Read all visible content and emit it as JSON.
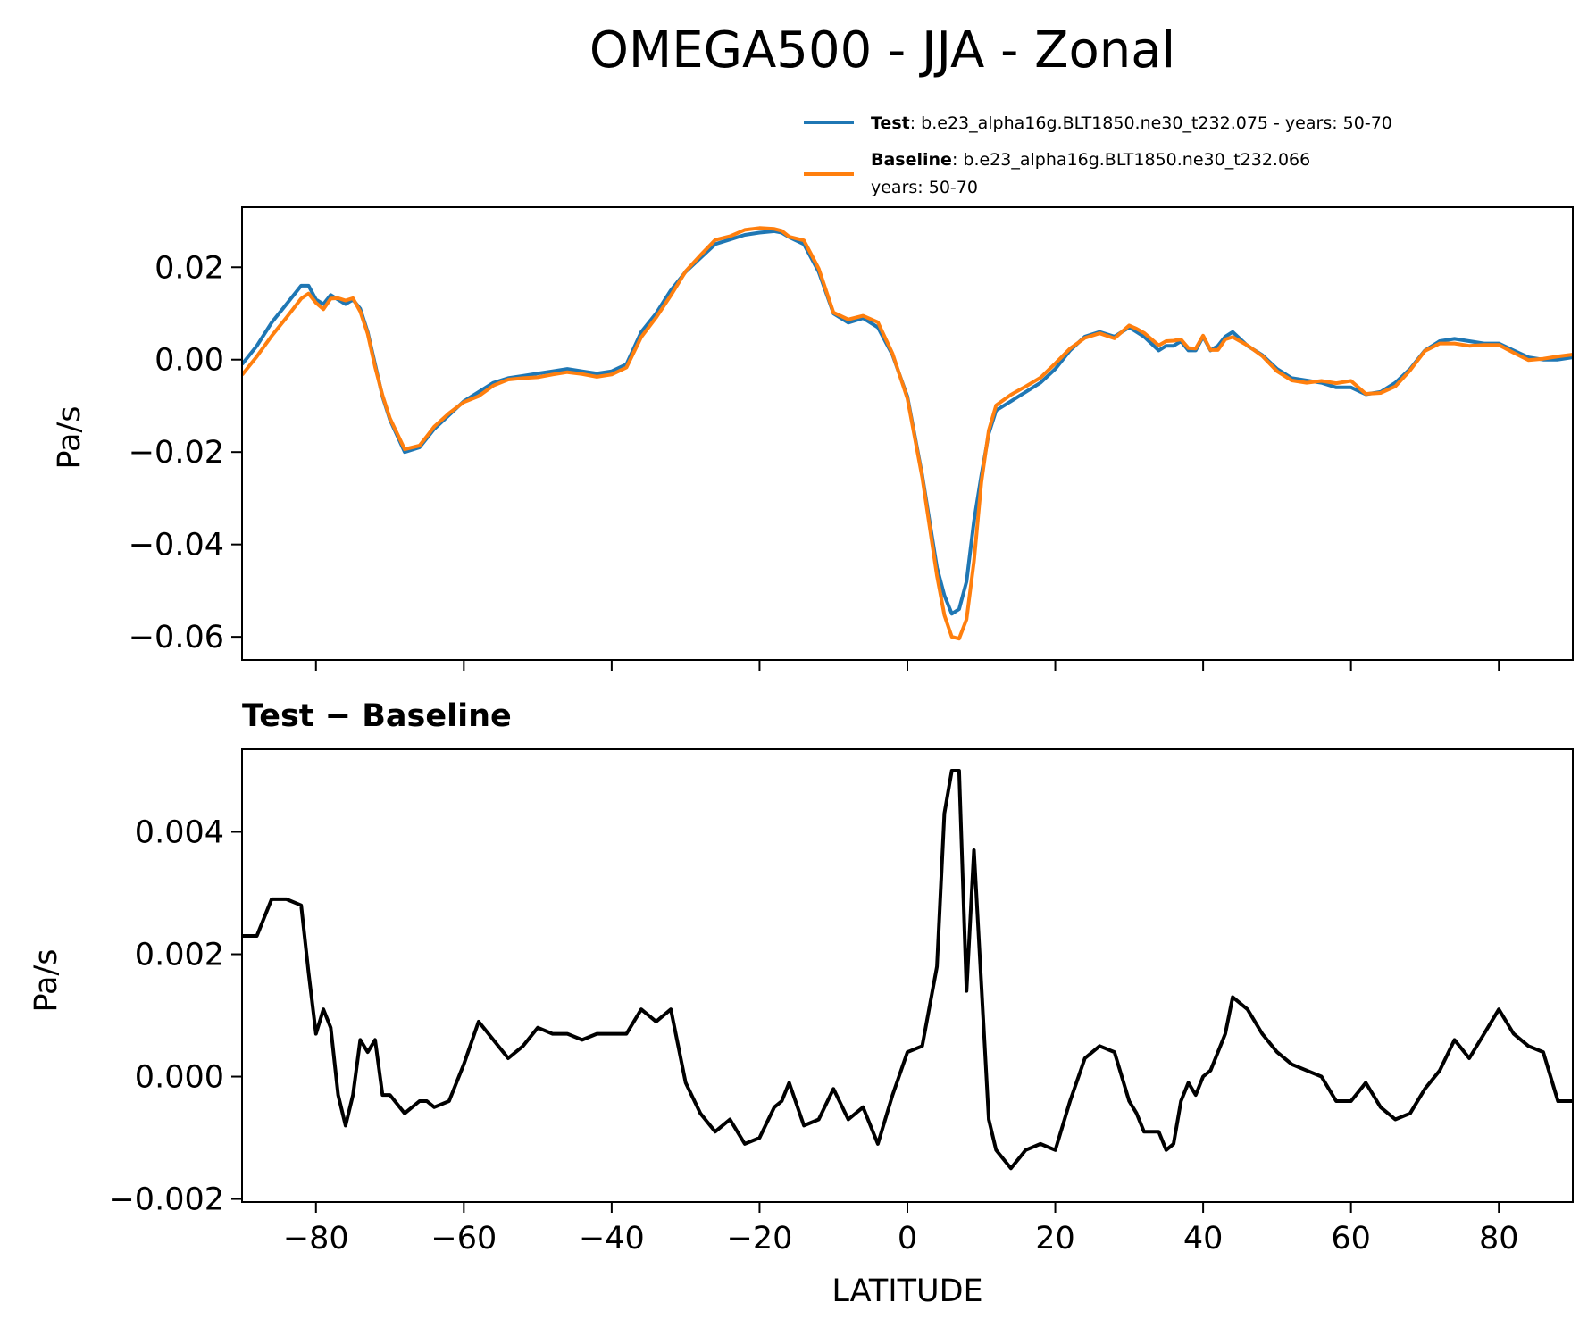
{
  "title": "OMEGA500 - JJA - Zonal",
  "legend": {
    "test_name": "Test",
    "test_desc": ": b.e23_alpha16g.BLT1850.ne30_t232.075 - years: 50-70",
    "baseline_name": "Baseline",
    "baseline_desc": ": b.e23_alpha16g.BLT1850.ne30_t232.066",
    "baseline_desc2": "years: 50-70"
  },
  "diff_title": "Test − Baseline",
  "colors": {
    "test": "#1f77b4",
    "baseline": "#ff7f0e",
    "diff": "#000000"
  },
  "chart_data": [
    {
      "type": "line",
      "title": "OMEGA500 - JJA - Zonal",
      "xlabel": "",
      "ylabel": "Pa/s",
      "xlim": [
        -90,
        90
      ],
      "ylim": [
        -0.065,
        0.033
      ],
      "xticks": [
        -80,
        -60,
        -40,
        -20,
        0,
        20,
        40,
        60,
        80
      ],
      "yticks": [
        0.02,
        0.0,
        -0.02,
        -0.04,
        -0.06
      ],
      "ytick_labels": [
        "0.02",
        "0.00",
        "−0.02",
        "−0.04",
        "−0.06"
      ],
      "series": [
        {
          "name": "Test",
          "x": [
            -90,
            -88,
            -86,
            -84,
            -82,
            -81,
            -80,
            -79,
            -78,
            -77,
            -76,
            -75,
            -74,
            -73,
            -72,
            -71,
            -70,
            -68,
            -66,
            -65,
            -64,
            -62,
            -60,
            -58,
            -56,
            -54,
            -52,
            -50,
            -48,
            -46,
            -44,
            -42,
            -40,
            -38,
            -36,
            -34,
            -32,
            -30,
            -28,
            -26,
            -24,
            -22,
            -20,
            -18,
            -17,
            -16,
            -14,
            -12,
            -10,
            -8,
            -6,
            -4,
            -2,
            0,
            2,
            4,
            5,
            6,
            7,
            8,
            9,
            10,
            11,
            12,
            14,
            16,
            18,
            20,
            22,
            24,
            26,
            28,
            30,
            31,
            32,
            34,
            35,
            36,
            37,
            38,
            39,
            40,
            41,
            42,
            43,
            44,
            46,
            48,
            50,
            52,
            54,
            56,
            58,
            60,
            62,
            64,
            66,
            68,
            70,
            72,
            74,
            76,
            78,
            80,
            82,
            84,
            86,
            88,
            90
          ],
          "values": [
            -0.001,
            0.003,
            0.008,
            0.012,
            0.016,
            0.016,
            0.013,
            0.012,
            0.014,
            0.013,
            0.012,
            0.013,
            0.011,
            0.006,
            -0.001,
            -0.008,
            -0.013,
            -0.02,
            -0.019,
            -0.017,
            -0.015,
            -0.012,
            -0.009,
            -0.007,
            -0.005,
            -0.004,
            -0.0035,
            -0.003,
            -0.0025,
            -0.002,
            -0.0025,
            -0.003,
            -0.0025,
            -0.001,
            0.006,
            0.01,
            0.015,
            0.019,
            0.022,
            0.025,
            0.026,
            0.027,
            0.0275,
            0.0278,
            0.0275,
            0.0265,
            0.025,
            0.019,
            0.01,
            0.008,
            0.009,
            0.007,
            0.001,
            -0.008,
            -0.025,
            -0.045,
            -0.051,
            -0.055,
            -0.054,
            -0.048,
            -0.035,
            -0.025,
            -0.016,
            -0.011,
            -0.009,
            -0.007,
            -0.005,
            -0.002,
            0.002,
            0.005,
            0.006,
            0.005,
            0.007,
            0.006,
            0.005,
            0.002,
            0.003,
            0.003,
            0.004,
            0.002,
            0.002,
            0.005,
            0.002,
            0.003,
            0.005,
            0.006,
            0.003,
            0.001,
            -0.002,
            -0.004,
            -0.0045,
            -0.005,
            -0.006,
            -0.006,
            -0.0075,
            -0.007,
            -0.005,
            -0.002,
            0.002,
            0.004,
            0.0045,
            0.004,
            0.0035,
            0.0035,
            0.002,
            0.0005,
            0.0,
            0.0,
            0.0005
          ]
        },
        {
          "name": "Baseline",
          "x": [
            -90,
            -88,
            -86,
            -84,
            -82,
            -81,
            -80,
            -79,
            -78,
            -77,
            -76,
            -75,
            -74,
            -73,
            -72,
            -71,
            -70,
            -68,
            -66,
            -65,
            -64,
            -62,
            -60,
            -58,
            -56,
            -54,
            -52,
            -50,
            -48,
            -46,
            -44,
            -42,
            -40,
            -38,
            -36,
            -34,
            -32,
            -30,
            -28,
            -26,
            -24,
            -22,
            -20,
            -18,
            -17,
            -16,
            -14,
            -12,
            -10,
            -8,
            -6,
            -4,
            -2,
            0,
            2,
            4,
            5,
            6,
            7,
            8,
            9,
            10,
            11,
            12,
            14,
            16,
            18,
            20,
            22,
            24,
            26,
            28,
            30,
            31,
            32,
            34,
            35,
            36,
            37,
            38,
            39,
            40,
            41,
            42,
            43,
            44,
            46,
            48,
            50,
            52,
            54,
            56,
            58,
            60,
            62,
            64,
            66,
            68,
            70,
            72,
            74,
            76,
            78,
            80,
            82,
            84,
            86,
            88,
            90
          ],
          "values": [
            -0.0033,
            0.0007,
            0.0051,
            0.0091,
            0.0132,
            0.0143,
            0.0123,
            0.0109,
            0.0132,
            0.0133,
            0.0128,
            0.0133,
            0.0104,
            0.0056,
            -0.0016,
            -0.0077,
            -0.0127,
            -0.0194,
            -0.0186,
            -0.0166,
            -0.0145,
            -0.0116,
            -0.0092,
            -0.0079,
            -0.0056,
            -0.0043,
            -0.004,
            -0.0038,
            -0.0032,
            -0.0027,
            -0.0031,
            -0.0037,
            -0.0032,
            -0.0017,
            0.0049,
            0.0091,
            0.0139,
            0.0191,
            0.0226,
            0.0259,
            0.0267,
            0.0281,
            0.0285,
            0.0283,
            0.0279,
            0.0266,
            0.0258,
            0.0197,
            0.0102,
            0.0087,
            0.0095,
            0.0081,
            0.0013,
            -0.0084,
            -0.0255,
            -0.0468,
            -0.0553,
            -0.06,
            -0.0604,
            -0.0562,
            -0.0437,
            -0.0265,
            -0.0153,
            -0.0099,
            -0.0076,
            -0.0058,
            -0.0039,
            -0.0008,
            0.0024,
            0.0047,
            0.0057,
            0.0046,
            0.0074,
            0.0067,
            0.0058,
            0.0031,
            0.004,
            0.0041,
            0.0044,
            0.0025,
            0.0024,
            0.0052,
            0.0021,
            0.0021,
            0.0044,
            0.0049,
            0.0031,
            0.0008,
            -0.0025,
            -0.0045,
            -0.005,
            -0.0046,
            -0.0051,
            -0.0046,
            -0.0074,
            -0.0072,
            -0.0058,
            -0.0023,
            0.0019,
            0.0035,
            0.0035,
            0.003,
            0.0032,
            0.0032,
            0.0015,
            -0.0001,
            0.0002,
            0.0007,
            0.0011
          ]
        }
      ]
    },
    {
      "type": "line",
      "title": "Test − Baseline",
      "xlabel": "LATITUDE",
      "ylabel": "Pa/s",
      "xlim": [
        -90,
        90
      ],
      "ylim": [
        -0.00205,
        0.00535
      ],
      "xticks": [
        -80,
        -60,
        -40,
        -20,
        0,
        20,
        40,
        60,
        80
      ],
      "xtick_labels": [
        "−80",
        "−60",
        "−40",
        "−20",
        "0",
        "20",
        "40",
        "60",
        "80"
      ],
      "yticks": [
        0.004,
        0.002,
        0.0,
        -0.002
      ],
      "ytick_labels": [
        "0.004",
        "0.002",
        "0.000",
        "−0.002"
      ],
      "series": [
        {
          "name": "Test − Baseline",
          "x": [
            -90,
            -88,
            -86,
            -84,
            -82,
            -81,
            -80,
            -79,
            -78,
            -77,
            -76,
            -75,
            -74,
            -73,
            -72,
            -71,
            -70,
            -68,
            -66,
            -65,
            -64,
            -62,
            -60,
            -58,
            -56,
            -54,
            -52,
            -50,
            -48,
            -46,
            -44,
            -42,
            -40,
            -38,
            -36,
            -34,
            -32,
            -30,
            -28,
            -26,
            -24,
            -22,
            -20,
            -18,
            -17,
            -16,
            -14,
            -12,
            -10,
            -8,
            -6,
            -4,
            -2,
            0,
            2,
            4,
            5,
            6,
            7,
            8,
            9,
            10,
            11,
            12,
            14,
            16,
            18,
            20,
            22,
            24,
            26,
            28,
            30,
            31,
            32,
            34,
            35,
            36,
            37,
            38,
            39,
            40,
            41,
            42,
            43,
            44,
            46,
            48,
            50,
            52,
            54,
            56,
            58,
            60,
            62,
            64,
            66,
            68,
            70,
            72,
            74,
            76,
            78,
            80,
            82,
            84,
            86,
            88,
            90
          ],
          "values": [
            0.0023,
            0.0023,
            0.0029,
            0.0029,
            0.0028,
            0.0017,
            0.0007,
            0.0011,
            0.0008,
            -0.0003,
            -0.0008,
            -0.0003,
            0.0006,
            0.0004,
            0.0006,
            -0.0003,
            -0.0003,
            -0.0006,
            -0.0004,
            -0.0004,
            -0.0005,
            -0.0004,
            0.0002,
            0.0009,
            0.0006,
            0.0003,
            0.0005,
            0.0008,
            0.0007,
            0.0007,
            0.0006,
            0.0007,
            0.0007,
            0.0007,
            0.0011,
            0.0009,
            0.0011,
            -0.0001,
            -0.0006,
            -0.0009,
            -0.0007,
            -0.0011,
            -0.001,
            -0.0005,
            -0.0004,
            -0.0001,
            -0.0008,
            -0.0007,
            -0.0002,
            -0.0007,
            -0.0005,
            -0.0011,
            -0.0003,
            0.0004,
            0.0005,
            0.0018,
            0.0043,
            0.005,
            0.005,
            0.0014,
            0.0037,
            0.0015,
            -0.0007,
            -0.0012,
            -0.0015,
            -0.0012,
            -0.0011,
            -0.0012,
            -0.0004,
            0.0003,
            0.0005,
            0.0004,
            -0.0004,
            -0.0006,
            -0.0009,
            -0.0009,
            -0.0012,
            -0.0011,
            -0.0004,
            -0.0001,
            -0.0003,
            0.0,
            0.0001,
            0.0004,
            0.0007,
            0.0013,
            0.0011,
            0.0007,
            0.0004,
            0.0002,
            0.0001,
            0.0,
            -0.0004,
            -0.0004,
            -0.0001,
            -0.0005,
            -0.0007,
            -0.0006,
            -0.0002,
            0.0001,
            0.0006,
            0.0003,
            0.0007,
            0.0011,
            0.0007,
            0.0005,
            0.0004,
            -0.0004,
            -0.0004
          ]
        }
      ]
    }
  ]
}
